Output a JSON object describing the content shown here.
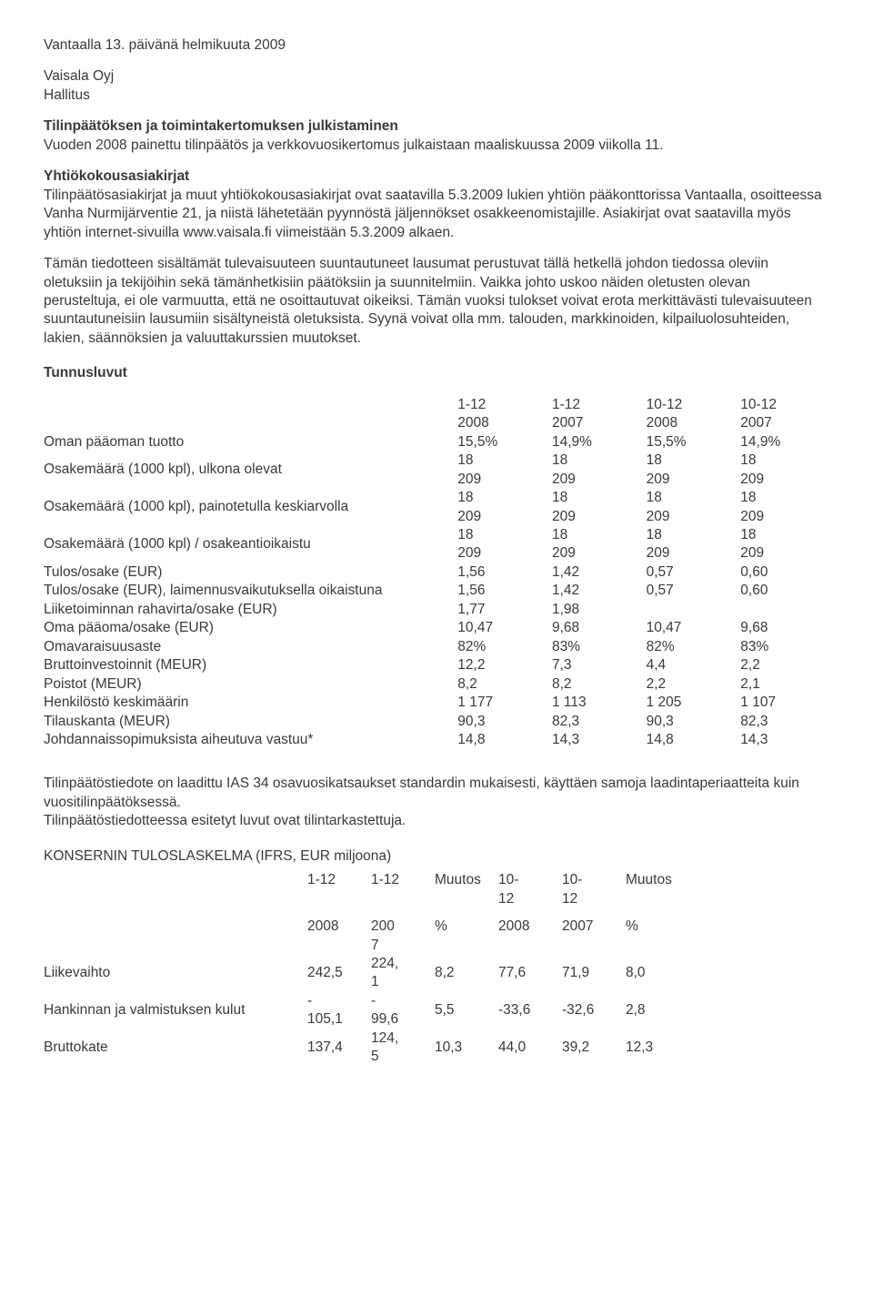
{
  "hdr": {
    "l1": "Vantaalla 13. päivänä helmikuuta 2009",
    "l2": "Vaisala Oyj",
    "l3": "Hallitus"
  },
  "sec1": {
    "title": "Tilinpäätöksen ja toimintakertomuksen julkistaminen",
    "body": "Vuoden 2008 painettu tilinpäätös ja verkkovuosikertomus julkaistaan maaliskuussa 2009 viikolla 11."
  },
  "sec2": {
    "title": "Yhtiökokousasiakirjat",
    "body": "Tilinpäätösasiakirjat ja muut yhtiökokousasiakirjat ovat saatavilla 5.3.2009 lukien yhtiön pääkonttorissa Vantaalla, osoitteessa Vanha Nurmijärventie 21, ja niistä lähetetään pyynnöstä jäljennökset osakkeenomistajille. Asiakirjat ovat saatavilla myös yhtiön internet-sivuilla www.vaisala.fi viimeistään 5.3.2009 alkaen."
  },
  "sec3": {
    "body": "Tämän tiedotteen sisältämät tulevaisuuteen suuntautuneet lausumat perustuvat tällä hetkellä johdon tiedossa oleviin oletuksiin ja tekijöihin sekä tämänhetkisiin päätöksiin ja suunnitelmiin. Vaikka johto uskoo näiden oletusten olevan perusteltuja, ei ole varmuutta, että ne osoittautuvat oikeiksi. Tämän vuoksi tulokset voivat erota merkittävästi tulevaisuuteen suuntautuneisiin lausumiin sisältyneistä oletuksista. Syynä voivat olla mm. talouden, markkinoiden, kilpailuolosuhteiden, lakien, säännöksien ja valuuttakurssien muutokset."
  },
  "kpi": {
    "title": "Tunnusluvut",
    "header": [
      "",
      "1-12 2008",
      "1-12 2007",
      "10-12 2008",
      "10-12 2007"
    ],
    "rows": [
      {
        "label": "Oman pääoman tuotto",
        "v": [
          "15,5%",
          "14,9%",
          "15,5%",
          "14,9%"
        ],
        "two": false
      },
      {
        "label": "Osakemäärä (1000 kpl), ulkona olevat",
        "v": [
          "18 209",
          "18 209",
          "18 209",
          "18 209"
        ],
        "two": true
      },
      {
        "label": "Osakemäärä (1000 kpl), painotetulla keskiarvolla",
        "v": [
          "18 209",
          "18 209",
          "18 209",
          "18 209"
        ],
        "two": true
      },
      {
        "label": "Osakemäärä (1000 kpl) / osakeantioikaistu",
        "v": [
          "18 209",
          "18 209",
          "18 209",
          "18 209"
        ],
        "two": true
      },
      {
        "label": "Tulos/osake (EUR)",
        "v": [
          "1,56",
          "1,42",
          "0,57",
          "0,60"
        ],
        "two": false
      },
      {
        "label": "Tulos/osake (EUR), laimennusvaikutuksella oikaistuna",
        "v": [
          "1,56",
          "1,42",
          "0,57",
          "0,60"
        ],
        "two": false
      },
      {
        "label": "Liiketoiminnan rahavirta/osake (EUR)",
        "v": [
          "1,77",
          "1,98",
          "",
          ""
        ],
        "two": false
      },
      {
        "label": "Oma pääoma/osake (EUR)",
        "v": [
          "10,47",
          "9,68",
          "10,47",
          "9,68"
        ],
        "two": false
      },
      {
        "label": "Omavaraisuusaste",
        "v": [
          "82%",
          "83%",
          "82%",
          "83%"
        ],
        "two": false
      },
      {
        "label": "Bruttoinvestoinnit (MEUR)",
        "v": [
          "12,2",
          "7,3",
          "4,4",
          "2,2"
        ],
        "two": false
      },
      {
        "label": "Poistot (MEUR)",
        "v": [
          "8,2",
          "8,2",
          "2,2",
          "2,1"
        ],
        "two": false
      },
      {
        "label": "Henkilöstö keskimäärin",
        "v": [
          "1 177",
          "1 113",
          "1 205",
          "1 107"
        ],
        "two": false
      },
      {
        "label": "Tilauskanta (MEUR)",
        "v": [
          "90,3",
          "82,3",
          "90,3",
          "82,3"
        ],
        "two": false
      },
      {
        "label": "Johdannaissopimuksista aiheutuva vastuu*",
        "v": [
          "14,8",
          "14,3",
          "14,8",
          "14,3"
        ],
        "two": false
      }
    ]
  },
  "note": {
    "l1": "Tilinpäätöstiedote on laadittu IAS 34 osavuosikatsaukset standardin mukaisesti, käyttäen samoja laadintaperiaatteita kuin vuositilinpäätöksessä.",
    "l2": "Tilinpäätöstiedotteessa esitetyt luvut ovat tilintarkastettuja."
  },
  "income": {
    "title": "KONSERNIN TULOSLASKELMA (IFRS, EUR miljoona)",
    "hdr1": [
      "",
      "1-12",
      "1-12",
      "Muutos",
      "10-12",
      "10-12",
      "Muutos"
    ],
    "hdr2": [
      "",
      "2008",
      "200 7",
      "%",
      "2008",
      "2007",
      "%"
    ],
    "rows": [
      {
        "label": "Liikevaihto",
        "v": [
          "242,5",
          "224, 1",
          "8,2",
          "77,6",
          "71,9",
          "8,0"
        ]
      },
      {
        "label": "Hankinnan ja valmistuksen kulut",
        "v": [
          "- 105,1",
          "- 99,6",
          "5,5",
          "-33,6",
          "-32,6",
          "2,8"
        ]
      },
      {
        "label": "Bruttokate",
        "v": [
          "137,4",
          "124, 5",
          "10,3",
          "44,0",
          "39,2",
          "12,3"
        ]
      }
    ]
  }
}
